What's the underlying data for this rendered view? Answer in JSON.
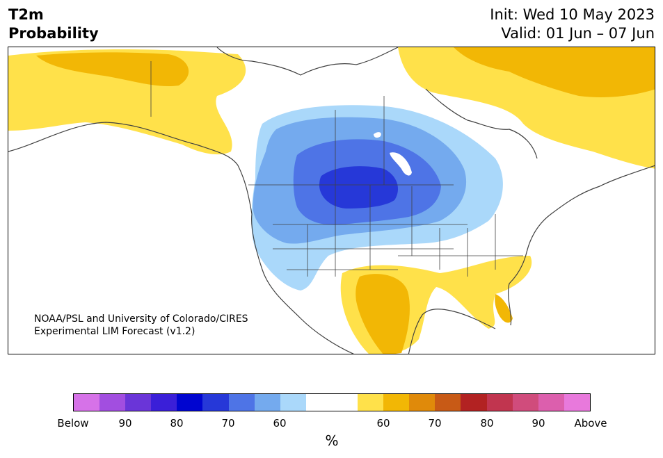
{
  "header": {
    "variable": "T2m",
    "product": "Probability",
    "init": "Init: Wed 10 May 2023",
    "valid": "Valid: 01 Jun – 07 Jun"
  },
  "credit": {
    "line1": "NOAA/PSL and University of Colorado/CIRES",
    "line2": "Experimental LIM Forecast (v1.2)"
  },
  "colorbar": {
    "colors": [
      "#d672e8",
      "#a24ee0",
      "#6a35d8",
      "#3a1fd8",
      "#0005d0",
      "#2638d8",
      "#4e74e6",
      "#74aaee",
      "#aad8fa",
      "#ffffff",
      "#ffffff",
      "#ffe14a",
      "#f2b705",
      "#e08a0a",
      "#c85a16",
      "#b22222",
      "#c1354f",
      "#d04c7c",
      "#dc5fad",
      "#e879dc"
    ],
    "labels": [
      "Below",
      "90",
      "80",
      "70",
      "60",
      "60",
      "70",
      "80",
      "90",
      "Above"
    ],
    "unit": "%"
  },
  "map": {
    "region": "North America",
    "colors": {
      "yellow": "#ffe14a",
      "orange": "#f2b705",
      "blue_light": "#aad8fa",
      "blue_2": "#74aaee",
      "blue_3": "#4e74e6",
      "blue_dark": "#2638d8",
      "land_border": "#404040"
    }
  }
}
